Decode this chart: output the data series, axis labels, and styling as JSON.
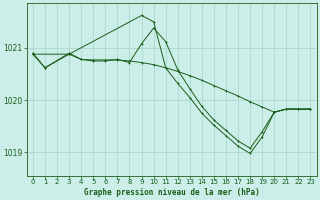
{
  "title": "Graphe pression niveau de la mer (hPa)",
  "background_color": "#cceee8",
  "grid_color": "#aad8cc",
  "line_color": "#1a5e1a",
  "xlim": [
    -0.5,
    23.5
  ],
  "ylim": [
    1018.55,
    1021.85
  ],
  "yticks": [
    1019,
    1020,
    1021
  ],
  "xticks": [
    0,
    1,
    2,
    3,
    4,
    5,
    6,
    7,
    8,
    9,
    10,
    11,
    12,
    13,
    14,
    15,
    16,
    17,
    18,
    19,
    20,
    21,
    22,
    23
  ],
  "line1_x": [
    0,
    1,
    3,
    4,
    5,
    6,
    7,
    8,
    9,
    10,
    11,
    12,
    13,
    14,
    15,
    16,
    17,
    18,
    19,
    20,
    21,
    22,
    23
  ],
  "line1_y": [
    1020.88,
    1020.62,
    1020.88,
    1020.78,
    1020.77,
    1020.77,
    1020.77,
    1020.75,
    1020.72,
    1020.68,
    1020.62,
    1020.55,
    1020.47,
    1020.38,
    1020.28,
    1020.18,
    1020.08,
    1019.97,
    1019.87,
    1019.77,
    1019.83,
    1019.83,
    1019.83
  ],
  "line2_x": [
    0,
    1,
    3,
    4,
    5,
    6,
    7,
    8,
    9,
    10,
    11,
    12,
    13,
    14,
    15,
    16,
    17,
    18,
    19,
    20,
    21,
    22,
    23
  ],
  "line2_y": [
    1020.9,
    1020.62,
    1020.9,
    1020.78,
    1020.75,
    1020.75,
    1020.78,
    1020.72,
    1021.08,
    1021.38,
    1021.12,
    1020.58,
    1020.22,
    1019.88,
    1019.62,
    1019.42,
    1019.22,
    1019.08,
    1019.4,
    1019.77,
    1019.83,
    1019.83,
    1019.83
  ],
  "line3_x": [
    0,
    3,
    9,
    10,
    11,
    12,
    13,
    14,
    15,
    16,
    17,
    18,
    19,
    20,
    21,
    22,
    23
  ],
  "line3_y": [
    1020.88,
    1020.88,
    1021.62,
    1021.5,
    1020.62,
    1020.32,
    1020.05,
    1019.75,
    1019.52,
    1019.32,
    1019.12,
    1018.98,
    1019.3,
    1019.77,
    1019.83,
    1019.83,
    1019.83
  ]
}
